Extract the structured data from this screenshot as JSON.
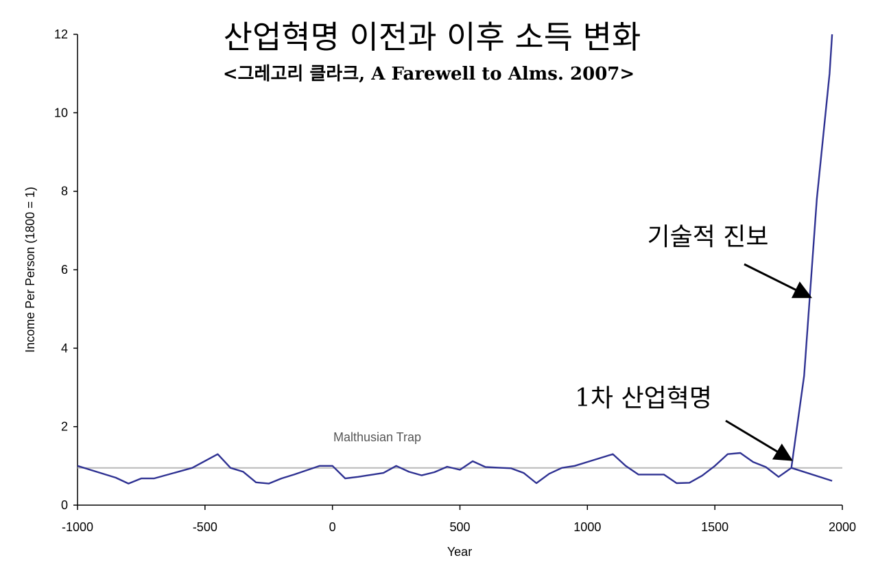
{
  "chart_data": {
    "type": "line",
    "title": "산업혁명 이전과 이후 소득 변화",
    "subtitle": "<그레고리 클라크, A Farewell to Alms. 2007>",
    "xlabel": "Year",
    "ylabel": "Income Per Person (1800 = 1)",
    "xlim": [
      -1000,
      2000
    ],
    "ylim": [
      0,
      12
    ],
    "x_ticks": [
      "-1000",
      "-500",
      "0",
      "500",
      "1000",
      "1500",
      "2000"
    ],
    "y_ticks": [
      "0",
      "2",
      "4",
      "6",
      "8",
      "10",
      "12"
    ],
    "grid": false,
    "reference_line": {
      "y": 0.95,
      "label": "Malthusian Trap"
    },
    "series": [
      {
        "color": "#2e3192",
        "points": [
          [
            -1000,
            1.0
          ],
          [
            -850,
            0.7
          ],
          [
            -800,
            0.55
          ],
          [
            -750,
            0.68
          ],
          [
            -700,
            0.68
          ],
          [
            -550,
            0.95
          ],
          [
            -450,
            1.3
          ],
          [
            -400,
            0.95
          ],
          [
            -350,
            0.85
          ],
          [
            -300,
            0.58
          ],
          [
            -250,
            0.55
          ],
          [
            -200,
            0.68
          ],
          [
            -150,
            0.78
          ],
          [
            -50,
            1.0
          ],
          [
            0,
            1.0
          ],
          [
            50,
            0.68
          ],
          [
            100,
            0.72
          ],
          [
            200,
            0.82
          ],
          [
            250,
            1.0
          ],
          [
            300,
            0.85
          ],
          [
            350,
            0.76
          ],
          [
            400,
            0.84
          ],
          [
            450,
            0.98
          ],
          [
            500,
            0.9
          ],
          [
            550,
            1.12
          ],
          [
            600,
            0.97
          ],
          [
            700,
            0.94
          ],
          [
            750,
            0.82
          ],
          [
            800,
            0.56
          ],
          [
            850,
            0.8
          ],
          [
            900,
            0.95
          ],
          [
            950,
            1.0
          ],
          [
            1000,
            1.1
          ],
          [
            1100,
            1.3
          ],
          [
            1150,
            1.0
          ],
          [
            1200,
            0.78
          ],
          [
            1300,
            0.78
          ],
          [
            1350,
            0.56
          ],
          [
            1400,
            0.57
          ],
          [
            1450,
            0.75
          ],
          [
            1500,
            1.0
          ],
          [
            1550,
            1.3
          ],
          [
            1600,
            1.33
          ],
          [
            1650,
            1.1
          ],
          [
            1700,
            0.97
          ],
          [
            1750,
            0.72
          ],
          [
            1800,
            0.95
          ],
          [
            1850,
            3.3
          ],
          [
            1900,
            7.8
          ],
          [
            1950,
            11.0
          ],
          [
            1960,
            12.0
          ]
        ]
      },
      {
        "color": "#2e3192",
        "points": [
          [
            1800,
            0.95
          ],
          [
            1960,
            0.62
          ]
        ]
      }
    ],
    "annotations": [
      {
        "text": "기술적 진보",
        "arrow_to": [
          1875,
          5.3
        ]
      },
      {
        "text": "1차 산업혁명",
        "arrow_to": [
          1800,
          1.15
        ]
      }
    ]
  }
}
